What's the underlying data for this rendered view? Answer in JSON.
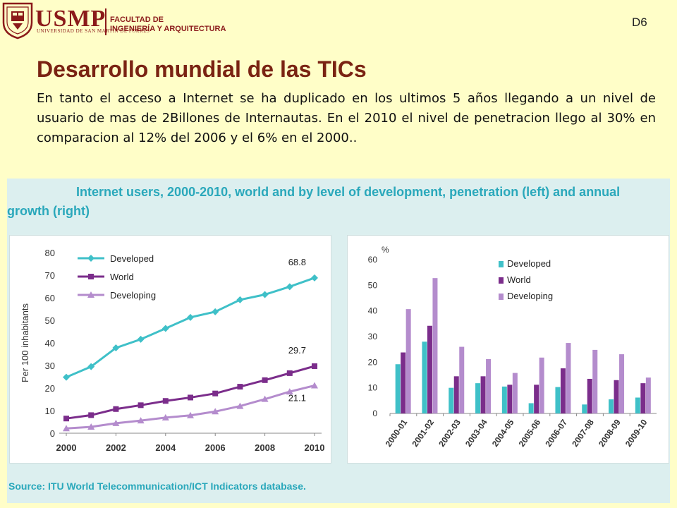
{
  "header": {
    "brand": "USMP",
    "brand_sub": "UNIVERSIDAD DE SAN MARTÍN DE PORRES",
    "faculty_line1": "FACULTAD DE",
    "faculty_line2": "INGENIERÍA Y ARQUITECTURA",
    "seal_text": "VERITAS LIBERABIT VOS",
    "slide_code": "D6"
  },
  "title": "Desarrollo mundial de las TICs",
  "intro": "En tanto el acceso a Internet se ha duplicado en los ultimos 5 años llegando a un nivel de usuario de mas de 2Billones de Internautas. En el 2010 el nivel de penetracion llego al 30% en comparacion al 12% del 2006 y el 6% en el 2000..",
  "figure": {
    "title": "Internet users, 2000-2010, world and by level of development, penetration (left) and annual growth (right)",
    "source": "Source:   ITU World Telecommunication/ICT Indicators database."
  },
  "colors": {
    "developed": "#3fc0c8",
    "world": "#7b2d8b",
    "developing": "#b48ccd"
  },
  "chart_data": [
    {
      "type": "line",
      "ylabel": "Per 100 inhabitants",
      "xlabel": "",
      "ylim": [
        0,
        80
      ],
      "yticks": [
        "0",
        "10",
        "20",
        "30",
        "40",
        "50",
        "60",
        "70",
        "80"
      ],
      "x": [
        2000,
        2001,
        2002,
        2003,
        2004,
        2005,
        2006,
        2007,
        2008,
        2009,
        2010
      ],
      "xticks": [
        "2000",
        "2002",
        "2004",
        "2006",
        "2008",
        "2010"
      ],
      "legend": "top-left",
      "series": [
        {
          "name": "Developed",
          "values": [
            24.8,
            29.5,
            37.8,
            41.6,
            46.4,
            51.3,
            53.8,
            59.1,
            61.4,
            64.9,
            68.8
          ],
          "end_label": "68.8"
        },
        {
          "name": "World",
          "values": [
            6.5,
            8.0,
            10.7,
            12.4,
            14.3,
            15.8,
            17.6,
            20.6,
            23.5,
            26.6,
            29.7
          ],
          "end_label": "29.7"
        },
        {
          "name": "Developing",
          "values": [
            2.1,
            2.8,
            4.4,
            5.6,
            6.9,
            7.9,
            9.6,
            12.0,
            15.1,
            18.4,
            21.1
          ],
          "end_label": "21.1"
        }
      ]
    },
    {
      "type": "bar",
      "ylabel": "%",
      "xlabel": "",
      "ylim": [
        0,
        60
      ],
      "yticks": [
        "0",
        "10",
        "20",
        "30",
        "40",
        "50",
        "60"
      ],
      "categories": [
        "2000-01",
        "2001-02",
        "2002-03",
        "2003-04",
        "2004-05",
        "2005-06",
        "2006-07",
        "2007-08",
        "2008-09",
        "2009-10"
      ],
      "legend": "top-right",
      "series": [
        {
          "name": "Developed",
          "values": [
            19.2,
            28.0,
            10.0,
            11.8,
            10.5,
            4.0,
            10.3,
            3.5,
            5.5,
            6.2
          ]
        },
        {
          "name": "World",
          "values": [
            23.8,
            34.2,
            14.5,
            14.5,
            11.2,
            11.2,
            17.6,
            13.5,
            13.0,
            11.8
          ]
        },
        {
          "name": "Developing",
          "values": [
            40.7,
            52.8,
            26.0,
            21.2,
            15.8,
            21.8,
            27.5,
            24.8,
            23.1,
            14.0
          ]
        }
      ]
    }
  ]
}
